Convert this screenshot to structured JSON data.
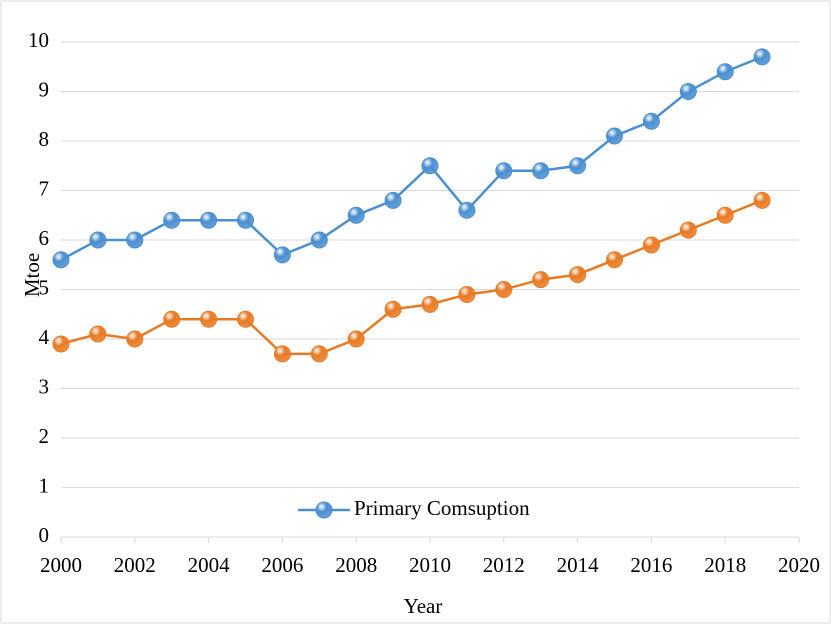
{
  "chart_data": {
    "type": "line",
    "x_label": "Year",
    "y_label": "Mtoe",
    "x": [
      2000,
      2001,
      2002,
      2003,
      2004,
      2005,
      2006,
      2007,
      2008,
      2009,
      2010,
      2011,
      2012,
      2013,
      2014,
      2015,
      2016,
      2017,
      2018,
      2019
    ],
    "series": [
      {
        "name": "Primary Comsuption",
        "color": "#4a8fd0",
        "values": [
          5.6,
          6.0,
          6.0,
          6.4,
          6.4,
          6.4,
          5.7,
          6.0,
          6.5,
          6.8,
          7.5,
          6.6,
          7.4,
          7.4,
          7.5,
          8.1,
          8.4,
          9.0,
          9.4,
          9.7
        ]
      },
      {
        "color": "#e97a24",
        "values": [
          3.9,
          4.1,
          4.0,
          4.4,
          4.4,
          4.4,
          3.7,
          3.7,
          4.0,
          4.6,
          4.7,
          4.9,
          5.0,
          5.2,
          5.3,
          5.6,
          5.9,
          6.2,
          6.5,
          6.8
        ]
      }
    ],
    "xlim": [
      2000,
      2020
    ],
    "xticks": [
      2000,
      2002,
      2004,
      2006,
      2008,
      2010,
      2012,
      2014,
      2016,
      2018,
      2020
    ],
    "ylim": [
      0,
      10
    ],
    "yticks": [
      0,
      1,
      2,
      3,
      4,
      5,
      6,
      7,
      8,
      9,
      10
    ],
    "grid": true,
    "legend": "bottom"
  }
}
